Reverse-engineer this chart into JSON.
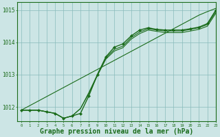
{
  "background_color": "#cce5e5",
  "plot_bg_color": "#cce5e5",
  "grid_color": "#88bbbb",
  "line_color": "#1a6b1a",
  "xlabel": "Graphe pression niveau de la mer (hPa)",
  "xlabel_fontsize": 7,
  "xlim": [
    -0.5,
    23
  ],
  "ylim": [
    1011.55,
    1015.25
  ],
  "yticks": [
    1012,
    1013,
    1014,
    1015
  ],
  "xticks": [
    0,
    1,
    2,
    3,
    4,
    5,
    6,
    7,
    8,
    9,
    10,
    11,
    12,
    13,
    14,
    15,
    16,
    17,
    18,
    19,
    20,
    21,
    22,
    23
  ],
  "series_main": [
    1011.9,
    1011.9,
    1011.9,
    1011.85,
    1011.8,
    1011.65,
    1011.72,
    1011.8,
    1012.35,
    1013.0,
    1013.55,
    1013.85,
    1013.95,
    1014.2,
    1014.38,
    1014.45,
    1014.4,
    1014.38,
    1014.38,
    1014.38,
    1014.42,
    1014.47,
    1014.58,
    1015.0
  ],
  "series_upper": [
    1011.9,
    1011.9,
    1011.9,
    1011.85,
    1011.8,
    1011.65,
    1011.72,
    1011.95,
    1012.45,
    1013.0,
    1013.52,
    1013.78,
    1013.88,
    1014.15,
    1014.32,
    1014.42,
    1014.38,
    1014.35,
    1014.35,
    1014.35,
    1014.4,
    1014.45,
    1014.55,
    1014.95
  ],
  "series_mid": [
    1011.9,
    1011.9,
    1011.9,
    1011.85,
    1011.8,
    1011.65,
    1011.72,
    1011.95,
    1012.42,
    1012.97,
    1013.48,
    1013.73,
    1013.83,
    1014.1,
    1014.27,
    1014.38,
    1014.34,
    1014.3,
    1014.3,
    1014.3,
    1014.35,
    1014.4,
    1014.5,
    1014.9
  ],
  "series_linear": [
    1011.9,
    1012.04,
    1012.18,
    1012.32,
    1012.46,
    1012.6,
    1012.74,
    1012.88,
    1013.02,
    1013.16,
    1013.3,
    1013.44,
    1013.58,
    1013.72,
    1013.86,
    1014.0,
    1014.14,
    1014.28,
    1014.42,
    1014.56,
    1014.7,
    1014.84,
    1014.95,
    1015.05
  ]
}
